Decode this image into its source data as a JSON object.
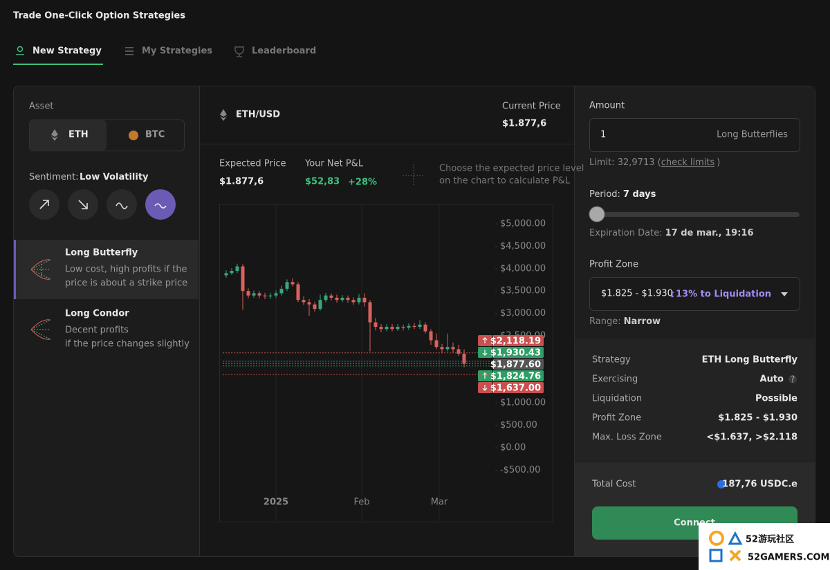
{
  "header": {
    "title": "Trade One-Click Option Strategies",
    "tabs": [
      "New Strategy",
      "My Strategies",
      "Leaderboard"
    ]
  },
  "left": {
    "asset_label": "Asset",
    "assets": [
      "ETH",
      "BTC"
    ],
    "sentiment_label": "Sentiment:",
    "sentiment": "Low Volatility",
    "strategies": [
      {
        "name": "Long Butterfly",
        "desc": [
          "Low cost, high profits if the",
          "price is about a strike price"
        ]
      },
      {
        "name": "Long Condor",
        "desc": [
          "Decent profits",
          "if the price changes slightly"
        ]
      }
    ]
  },
  "middle": {
    "pair": "ETH/USD",
    "current_price_label": "Current Price",
    "current_price": "$1.877,6",
    "expected_price_label": "Expected Price",
    "expected_price": "$1.877,6",
    "pnl_label": "Your Net P&L",
    "pnl": "$52,83",
    "pnl_pct": "+28%",
    "hint": [
      "Choose the expected price level",
      "on the chart to calculate P&L"
    ]
  },
  "chart_data": {
    "type": "candlestick",
    "grid": "x",
    "up_color": "#3aa77a",
    "down_color": "#d9625d",
    "xlim": [
      -20.25,
      100.25
    ],
    "ylim": [
      -1651,
      5432
    ],
    "xticks": [
      {
        "value": 0,
        "label": "2025"
      },
      {
        "value": 31,
        "label": "Feb"
      },
      {
        "value": 59,
        "label": "Mar"
      }
    ],
    "yticks": [
      {
        "value": 5000,
        "label": "$5,000.00"
      },
      {
        "value": 4500,
        "label": "$4,500.00"
      },
      {
        "value": 4000,
        "label": "$4,000.00"
      },
      {
        "value": 3500,
        "label": "$3,500.00"
      },
      {
        "value": 3000,
        "label": "$3,000.00"
      },
      {
        "value": 2500,
        "label": "$2,500.00"
      },
      {
        "value": 1000,
        "label": "$1,000.00"
      },
      {
        "value": 500,
        "label": "$500.00"
      },
      {
        "value": 0,
        "label": "$0.00"
      },
      {
        "value": -500,
        "label": "-$500.00"
      }
    ],
    "x": [
      -18,
      -16,
      -14,
      -12,
      -10,
      -8,
      -6,
      -4,
      -2,
      0,
      2,
      4,
      6,
      8,
      10,
      12,
      14,
      16,
      18,
      20,
      22,
      24,
      26,
      28,
      30,
      32,
      34,
      36,
      38,
      40,
      42,
      44,
      46,
      48,
      50,
      52,
      54,
      56,
      58,
      60,
      62,
      64,
      66,
      68
    ],
    "open": [
      3850,
      3900,
      3950,
      4050,
      3500,
      3400,
      3450,
      3400,
      3380,
      3400,
      3450,
      3550,
      3700,
      3650,
      3300,
      3250,
      3200,
      3100,
      3300,
      3400,
      3350,
      3300,
      3350,
      3300,
      3250,
      3350,
      3250,
      2800,
      2700,
      2650,
      2700,
      2650,
      2700,
      2680,
      2720,
      2700,
      2750,
      2600,
      2400,
      2250,
      2200,
      2250,
      2200,
      2100
    ],
    "high": [
      3960,
      4010,
      4110,
      4100,
      3560,
      3510,
      3500,
      3460,
      3460,
      3510,
      3620,
      3760,
      3780,
      3700,
      3380,
      3320,
      3260,
      3420,
      3460,
      3450,
      3420,
      3410,
      3400,
      3360,
      3430,
      3450,
      3300,
      2900,
      2760,
      2760,
      2760,
      2760,
      2750,
      2780,
      2790,
      2850,
      2800,
      2650,
      2550,
      2320,
      2550,
      2350,
      2300,
      2200
    ],
    "low": [
      3800,
      3860,
      3900,
      3080,
      3340,
      3350,
      3340,
      3320,
      3320,
      3350,
      3400,
      3500,
      3600,
      3250,
      3190,
      2950,
      3040,
      3060,
      3250,
      3290,
      3240,
      3250,
      3240,
      3190,
      3200,
      3150,
      2150,
      2620,
      2580,
      2600,
      2600,
      2610,
      2620,
      2630,
      2650,
      2650,
      2550,
      2300,
      2200,
      2120,
      2150,
      2130,
      2050,
      1800
    ],
    "close": [
      3900,
      3950,
      4050,
      3500,
      3400,
      3450,
      3400,
      3380,
      3400,
      3450,
      3550,
      3700,
      3650,
      3300,
      3250,
      3200,
      3100,
      3300,
      3400,
      3350,
      3300,
      3350,
      3300,
      3250,
      3350,
      3250,
      2800,
      2700,
      2650,
      2700,
      2650,
      2700,
      2680,
      2720,
      2700,
      2750,
      2600,
      2400,
      2250,
      2200,
      2250,
      2200,
      2100,
      1877.6
    ],
    "price_lines": [
      {
        "value": 2118.19,
        "label": "$2,118.19",
        "color": "#c8504f",
        "direction": "up"
      },
      {
        "value": 1930.43,
        "label": "$1,930.43",
        "color": "#2f9e65",
        "direction": "down"
      },
      {
        "value": 1877.6,
        "label": "$1,877.60",
        "color": "#555555"
      },
      {
        "value": 1824.76,
        "label": "$1,824.76",
        "color": "#2f9e65",
        "direction": "up"
      },
      {
        "value": 1637,
        "label": "$1,637.00",
        "color": "#c8504f",
        "direction": "down"
      }
    ]
  },
  "right": {
    "amount_label": "Amount",
    "amount": "1",
    "amount_unit": "Long Butterflies",
    "limit": "Limit: 32,9713 (",
    "limit_link": "check limits",
    "limit_end": ")",
    "period_label": "Period:",
    "period": "7 days",
    "expiration_label": "Expiration Date:",
    "expiration": "17 de mar., 19:16",
    "profit_zone_label": "Profit Zone",
    "profit_zone": "$1.825 - $1.930",
    "liquidation": "13% to Liquidation",
    "range_label": "Range:",
    "range": "Narrow",
    "summary": [
      [
        "Strategy",
        "ETH Long Butterfly"
      ],
      [
        "Exercising",
        "Auto"
      ],
      [
        "Liquidation",
        "Possible"
      ],
      [
        "Profit Zone",
        "$1.825 - $1.930"
      ],
      [
        "Max. Loss Zone",
        "<$1.637, >$2.118"
      ]
    ],
    "total_label": "Total Cost",
    "total": "187,76 USDC.e",
    "button": "Connect"
  },
  "watermark": {
    "name": "52游玩社区",
    "site": "52GAMERS.COM"
  }
}
